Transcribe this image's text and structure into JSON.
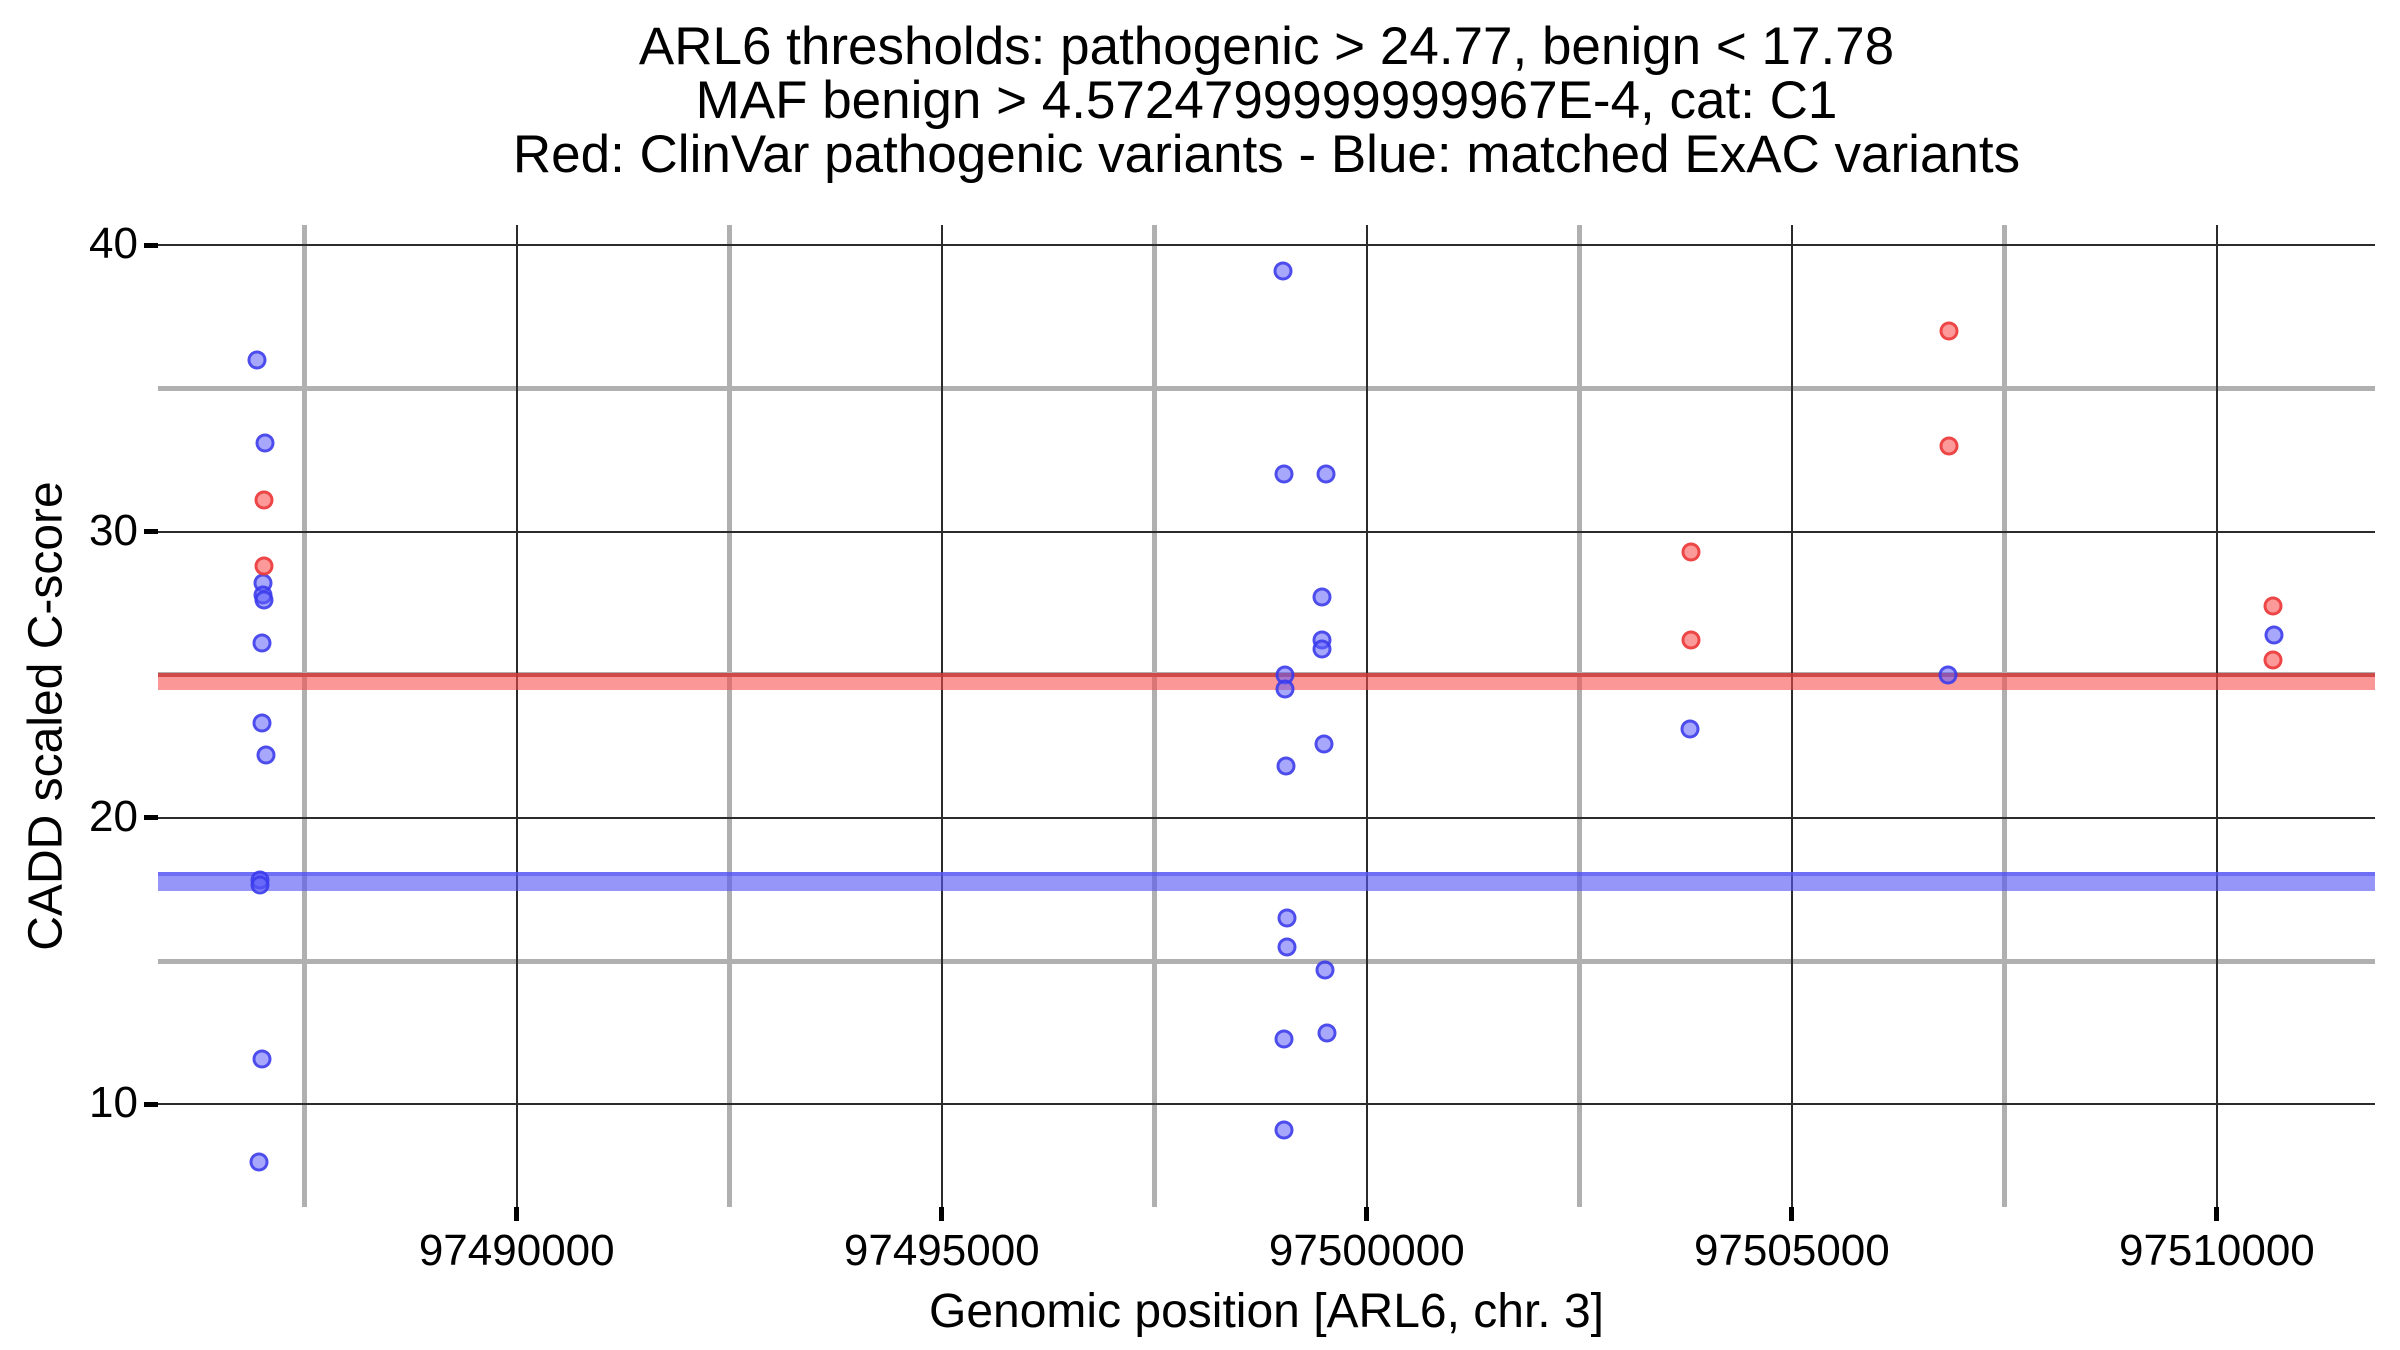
{
  "chart_data": {
    "type": "scatter",
    "title_lines": [
      "ARL6 thresholds: pathogenic > 24.77, benign < 17.78",
      "MAF benign > 4.5724799999999967E-4, cat: C1",
      "Red: ClinVar pathogenic variants - Blue: matched ExAC variants"
    ],
    "xlabel": "Genomic position [ARL6, chr. 3]",
    "ylabel": "CADD scaled C-score",
    "xlim": [
      97485780,
      97511860
    ],
    "ylim": [
      6.42,
      40.7
    ],
    "grid": {
      "major_color": "#2b2b2b",
      "minor_color": "#b0b0b0",
      "shown": true
    },
    "x_ticks": [
      {
        "value": 97490000,
        "label": "97490000"
      },
      {
        "value": 97495000,
        "label": "97495000"
      },
      {
        "value": 97500000,
        "label": "97500000"
      },
      {
        "value": 97505000,
        "label": "97505000"
      },
      {
        "value": 97510000,
        "label": "97510000"
      }
    ],
    "y_ticks": [
      {
        "value": 40,
        "label": "40"
      },
      {
        "value": 30,
        "label": "30"
      },
      {
        "value": 20,
        "label": "20"
      },
      {
        "value": 10,
        "label": "10"
      }
    ],
    "x_minor_gridlines": [
      97487500,
      97492500,
      97497500,
      97502500,
      97507500
    ],
    "y_minor_gridlines": [
      35,
      25,
      15
    ],
    "thresholds": [
      {
        "name": "pathogenic",
        "value": 24.77,
        "fill": "rgba(250,75,75,0.58)",
        "edge": "rgba(205,50,50,0.65)",
        "thickness": 17
      },
      {
        "name": "benign",
        "value": 17.78,
        "fill": "rgba(85,85,245,0.62)",
        "edge": "rgba(85,85,245,0.62)",
        "thickness": 19
      }
    ],
    "series": [
      {
        "name": "matched ExAC variants",
        "legend_color_word": "Blue",
        "fill": "rgba(95,95,250,0.55)",
        "edge": "rgba(55,55,235,0.8)",
        "points": [
          [
            97486941,
            36.0
          ],
          [
            97487035,
            33.1
          ],
          [
            97487011,
            28.2
          ],
          [
            97487011,
            27.8
          ],
          [
            97487023,
            27.6
          ],
          [
            97487000,
            26.1
          ],
          [
            97487000,
            23.3
          ],
          [
            97487047,
            22.2
          ],
          [
            97486976,
            17.85
          ],
          [
            97486976,
            17.65
          ],
          [
            97487000,
            11.6
          ],
          [
            97486964,
            8.0
          ],
          [
            97499012,
            39.1
          ],
          [
            97499024,
            32.0
          ],
          [
            97499518,
            32.0
          ],
          [
            97499471,
            27.7
          ],
          [
            97499471,
            26.2
          ],
          [
            97499471,
            25.9
          ],
          [
            97499035,
            25.0
          ],
          [
            97499035,
            24.5
          ],
          [
            97499494,
            22.6
          ],
          [
            97499047,
            21.8
          ],
          [
            97499059,
            16.5
          ],
          [
            97499059,
            15.5
          ],
          [
            97499506,
            14.7
          ],
          [
            97499529,
            12.5
          ],
          [
            97499024,
            12.3
          ],
          [
            97499024,
            9.1
          ],
          [
            97503800,
            23.1
          ],
          [
            97506835,
            25.0
          ],
          [
            97510671,
            26.4
          ]
        ]
      },
      {
        "name": "ClinVar pathogenic variants",
        "legend_color_word": "Red",
        "fill": "rgba(250,90,90,0.62)",
        "edge": "rgba(235,50,50,0.8)",
        "points": [
          [
            97487023,
            31.1
          ],
          [
            97487023,
            28.8
          ],
          [
            97503812,
            29.3
          ],
          [
            97503812,
            26.2
          ],
          [
            97506847,
            37.0
          ],
          [
            97506847,
            33.0
          ],
          [
            97510659,
            27.4
          ],
          [
            97510659,
            25.5
          ]
        ]
      }
    ]
  }
}
